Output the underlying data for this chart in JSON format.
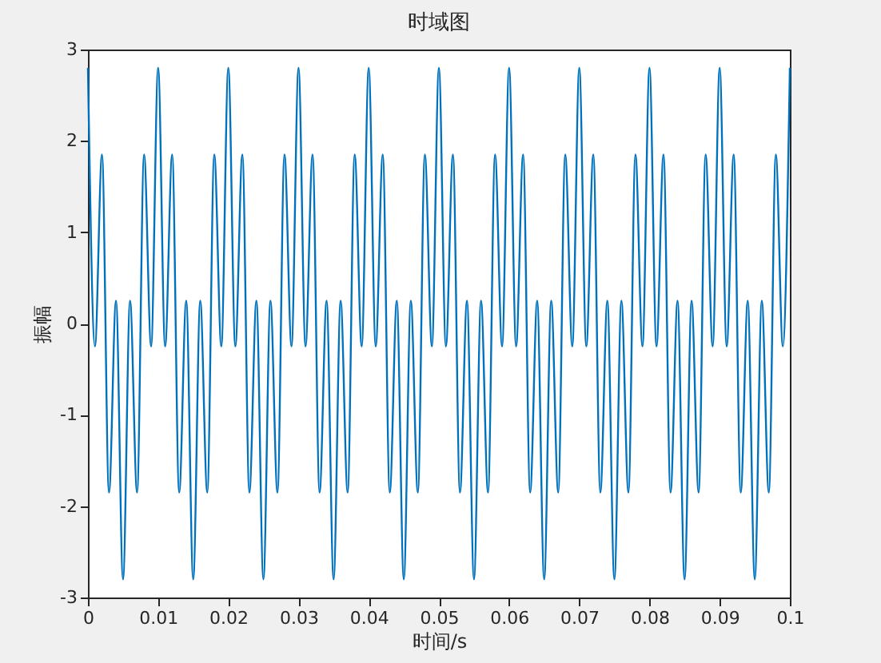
{
  "chart_data": {
    "type": "line",
    "title": "时域图",
    "xlabel": "时间/s",
    "ylabel": "振幅",
    "x": [
      0,
      0.001,
      0.002,
      0.003,
      0.004,
      0.005,
      0.006,
      0.007,
      0.008,
      0.009,
      0.01,
      0.011,
      0.012,
      0.013,
      0.014,
      0.015,
      0.016,
      0.017,
      0.018,
      0.019,
      0.02,
      0.021,
      0.022,
      0.023,
      0.024,
      0.025,
      0.026,
      0.027,
      0.028,
      0.029,
      0.03,
      0.031,
      0.032,
      0.033,
      0.034,
      0.035,
      0.036,
      0.037,
      0.038,
      0.039,
      0.04,
      0.041,
      0.042,
      0.043,
      0.044,
      0.045,
      0.046,
      0.047,
      0.048,
      0.049,
      0.05,
      0.051,
      0.052,
      0.053,
      0.054,
      0.055,
      0.056,
      0.057,
      0.058,
      0.059,
      0.06,
      0.061,
      0.062,
      0.063,
      0.064,
      0.065,
      0.066,
      0.067,
      0.068,
      0.069,
      0.07,
      0.071,
      0.072,
      0.073,
      0.074,
      0.075,
      0.076,
      0.077,
      0.078,
      0.079,
      0.08,
      0.081,
      0.082,
      0.083,
      0.084,
      0.085,
      0.086,
      0.087,
      0.088,
      0.089,
      0.09,
      0.091,
      0.092,
      0.093,
      0.094,
      0.095,
      0.096,
      0.097,
      0.098,
      0.099,
      0.1
    ],
    "series": [
      {
        "color": "#0072bd",
        "values": [
          2.8,
          -0.25,
          1.85,
          -1.85,
          0.25,
          -2.8,
          0.25,
          -1.85,
          1.85,
          -0.25,
          2.8,
          -0.25,
          1.85,
          -1.85,
          0.25,
          -2.8,
          0.25,
          -1.85,
          1.85,
          -0.25,
          2.8,
          -0.25,
          1.85,
          -1.85,
          0.25,
          -2.8,
          0.25,
          -1.85,
          1.85,
          -0.25,
          2.8,
          -0.25,
          1.85,
          -1.85,
          0.25,
          -2.8,
          0.25,
          -1.85,
          1.85,
          -0.25,
          2.8,
          -0.25,
          1.85,
          -1.85,
          0.25,
          -2.8,
          0.25,
          -1.85,
          1.85,
          -0.25,
          2.8,
          -0.25,
          1.85,
          -1.85,
          0.25,
          -2.8,
          0.25,
          -1.85,
          1.85,
          -0.25,
          2.8,
          -0.25,
          1.85,
          -1.85,
          0.25,
          -2.8,
          0.25,
          -1.85,
          1.85,
          -0.25,
          2.8,
          -0.25,
          1.85,
          -1.85,
          0.25,
          -2.8,
          0.25,
          -1.85,
          1.85,
          -0.25,
          2.8,
          -0.25,
          1.85,
          -1.85,
          0.25,
          -2.8,
          0.25,
          -1.85,
          1.85,
          -0.25,
          2.8,
          -0.25,
          1.85,
          -1.85,
          0.25,
          -2.8,
          0.25,
          -1.85,
          1.85,
          -0.25,
          2.8
        ]
      }
    ],
    "xlim": [
      0,
      0.1
    ],
    "xticks": [
      0,
      0.01,
      0.02,
      0.03,
      0.04,
      0.05,
      0.06,
      0.07,
      0.08,
      0.09,
      0.1
    ],
    "ylim": [
      -3,
      3
    ],
    "yticks": [
      -3,
      -2,
      -1,
      0,
      1,
      2,
      3
    ],
    "grid": false,
    "marker": "none",
    "line_style": "solid"
  }
}
